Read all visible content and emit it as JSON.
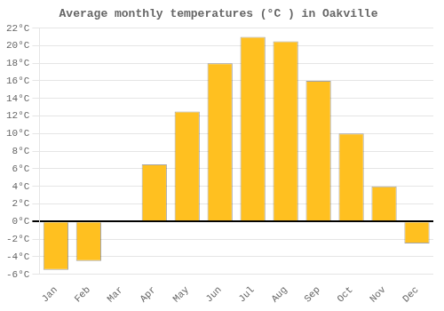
{
  "chart_data": {
    "type": "bar",
    "title": "Average monthly temperatures (°C ) in Oakville",
    "categories": [
      "Jan",
      "Feb",
      "Mar",
      "Apr",
      "May",
      "Jun",
      "Jul",
      "Aug",
      "Sep",
      "Oct",
      "Nov",
      "Dec"
    ],
    "values": [
      -5.5,
      -4.5,
      0.0,
      6.5,
      12.5,
      18.0,
      21.0,
      20.5,
      16.0,
      10.0,
      4.0,
      -2.5
    ],
    "color": "#FFC020",
    "ylim": [
      -6,
      22
    ],
    "yticks": [
      {
        "value": -6,
        "label": "-6°C"
      },
      {
        "value": -4,
        "label": "-4°C"
      },
      {
        "value": -2,
        "label": "-2°C"
      },
      {
        "value": 0,
        "label": "0°C"
      },
      {
        "value": 2,
        "label": "2°C"
      },
      {
        "value": 4,
        "label": "4°C"
      },
      {
        "value": 6,
        "label": "6°C"
      },
      {
        "value": 8,
        "label": "8°C"
      },
      {
        "value": 10,
        "label": "10°C"
      },
      {
        "value": 12,
        "label": "12°C"
      },
      {
        "value": 14,
        "label": "14°C"
      },
      {
        "value": 16,
        "label": "16°C"
      },
      {
        "value": 18,
        "label": "18°C"
      },
      {
        "value": 20,
        "label": "20°C"
      },
      {
        "value": 22,
        "label": "22°C"
      }
    ],
    "grid": true
  }
}
